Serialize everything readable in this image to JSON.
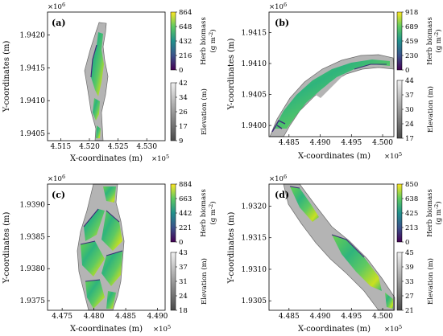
{
  "chart_data": [
    {
      "type": "heatmap",
      "panel_label": "(a)",
      "xlabel": "X-coordinates (m)",
      "ylabel": "Y-coordinates (m)",
      "x_exponent": "×10",
      "x_exponent_power": "5",
      "y_exponent": "×10",
      "y_exponent_power": "6",
      "x_ticks": [
        "4.515",
        "4.520",
        "4.525",
        "4.530"
      ],
      "x_tick_values": [
        4.515,
        4.52,
        4.525,
        4.53
      ],
      "xlim": [
        4.5127,
        4.5332
      ],
      "y_ticks": [
        "1.9420",
        "1.9415",
        "1.9410",
        "1.9405"
      ],
      "y_tick_values": [
        1.942,
        1.9415,
        1.941,
        1.9405
      ],
      "ylim": [
        1.94039,
        1.94235
      ],
      "biomass_colorbar": {
        "label": "Herb biomass",
        "unit": "(g m",
        "unit_power": "-2",
        "unit_close": ")",
        "ticks": [
          "864",
          "648",
          "432",
          "216",
          "0"
        ],
        "range": [
          0,
          864
        ]
      },
      "elevation_colorbar": {
        "label": "Elevation (m)",
        "ticks": [
          "42",
          "34",
          "26",
          "17",
          "9"
        ],
        "range": [
          9,
          42
        ]
      }
    },
    {
      "type": "heatmap",
      "panel_label": "(b)",
      "xlabel": "X-coordinates (m)",
      "ylabel": "Y-coordinates (m)",
      "x_exponent": "×10",
      "x_exponent_power": "5",
      "y_exponent": "×10",
      "y_exponent_power": "6",
      "x_ticks": [
        "4.485",
        "4.490",
        "4.495",
        "4.500"
      ],
      "x_tick_values": [
        4.485,
        4.49,
        4.495,
        4.5
      ],
      "xlim": [
        4.4818,
        4.5018
      ],
      "y_ticks": [
        "1.9415",
        "1.9410",
        "1.9405",
        "1.9400"
      ],
      "y_tick_values": [
        1.9415,
        1.941,
        1.9405,
        1.94
      ],
      "ylim": [
        1.93982,
        1.94183
      ],
      "biomass_colorbar": {
        "label": "Herb biomass",
        "unit": "(g m",
        "unit_power": "-2",
        "unit_close": ")",
        "ticks": [
          "918",
          "689",
          "459",
          "230",
          "0"
        ],
        "range": [
          0,
          918
        ]
      },
      "elevation_colorbar": {
        "label": "Elevation (m)",
        "ticks": [
          "44",
          "37",
          "30",
          "24",
          "17"
        ],
        "range": [
          17,
          44
        ]
      }
    },
    {
      "type": "heatmap",
      "panel_label": "(c)",
      "xlabel": "X-coordinates (m)",
      "ylabel": "Y-coordinates (m)",
      "x_exponent": "×10",
      "x_exponent_power": "5",
      "y_exponent": "×10",
      "y_exponent_power": "6",
      "x_ticks": [
        "4.475",
        "4.480",
        "4.485",
        "4.490"
      ],
      "x_tick_values": [
        4.475,
        4.48,
        4.485,
        4.49
      ],
      "xlim": [
        4.4727,
        4.4912
      ],
      "y_ticks": [
        "1.9390",
        "1.9385",
        "1.9380",
        "1.9375"
      ],
      "y_tick_values": [
        1.939,
        1.9385,
        1.938,
        1.9375
      ],
      "ylim": [
        1.93735,
        1.93932
      ],
      "biomass_colorbar": {
        "label": "Herb biomass",
        "unit": "(g m",
        "unit_power": "-2",
        "unit_close": ")",
        "ticks": [
          "884",
          "663",
          "442",
          "221",
          "0"
        ],
        "range": [
          0,
          884
        ]
      },
      "elevation_colorbar": {
        "label": "Elevation (m)",
        "ticks": [
          "43",
          "37",
          "31",
          "24",
          "18"
        ],
        "range": [
          18,
          43
        ]
      }
    },
    {
      "type": "heatmap",
      "panel_label": "(d)",
      "xlabel": "X-coordinates (m)",
      "ylabel": "Y-coordinates (m)",
      "x_exponent": "×10",
      "x_exponent_power": "5",
      "y_exponent": "×10",
      "y_exponent_power": "6",
      "x_ticks": [
        "4.485",
        "4.490",
        "4.495",
        "4.500"
      ],
      "x_tick_values": [
        4.485,
        4.49,
        4.495,
        4.5
      ],
      "xlim": [
        4.4818,
        4.5018
      ],
      "y_ticks": [
        "1.9320",
        "1.9315",
        "1.9310",
        "1.9305"
      ],
      "y_tick_values": [
        1.932,
        1.9315,
        1.931,
        1.9305
      ],
      "ylim": [
        1.93035,
        1.93235
      ],
      "biomass_colorbar": {
        "label": "Herb biomass",
        "unit": "(g m",
        "unit_power": "-2",
        "unit_close": ")",
        "ticks": [
          "850",
          "638",
          "425",
          "213",
          "0"
        ],
        "range": [
          0,
          850
        ]
      },
      "elevation_colorbar": {
        "label": "Elevation (m)",
        "ticks": [
          "45",
          "39",
          "33",
          "27",
          "21"
        ],
        "range": [
          21,
          45
        ]
      }
    }
  ],
  "colors": {
    "biomass_colormap": [
      "#440154",
      "#3b528b",
      "#21908c",
      "#5ec962",
      "#fde725"
    ],
    "elevation_colormap": [
      "#4a4a4a",
      "#9a9a9a",
      "#e6e6e6"
    ],
    "river_gray": "#b4b4b4",
    "river_edge": "#6a6a6a"
  }
}
